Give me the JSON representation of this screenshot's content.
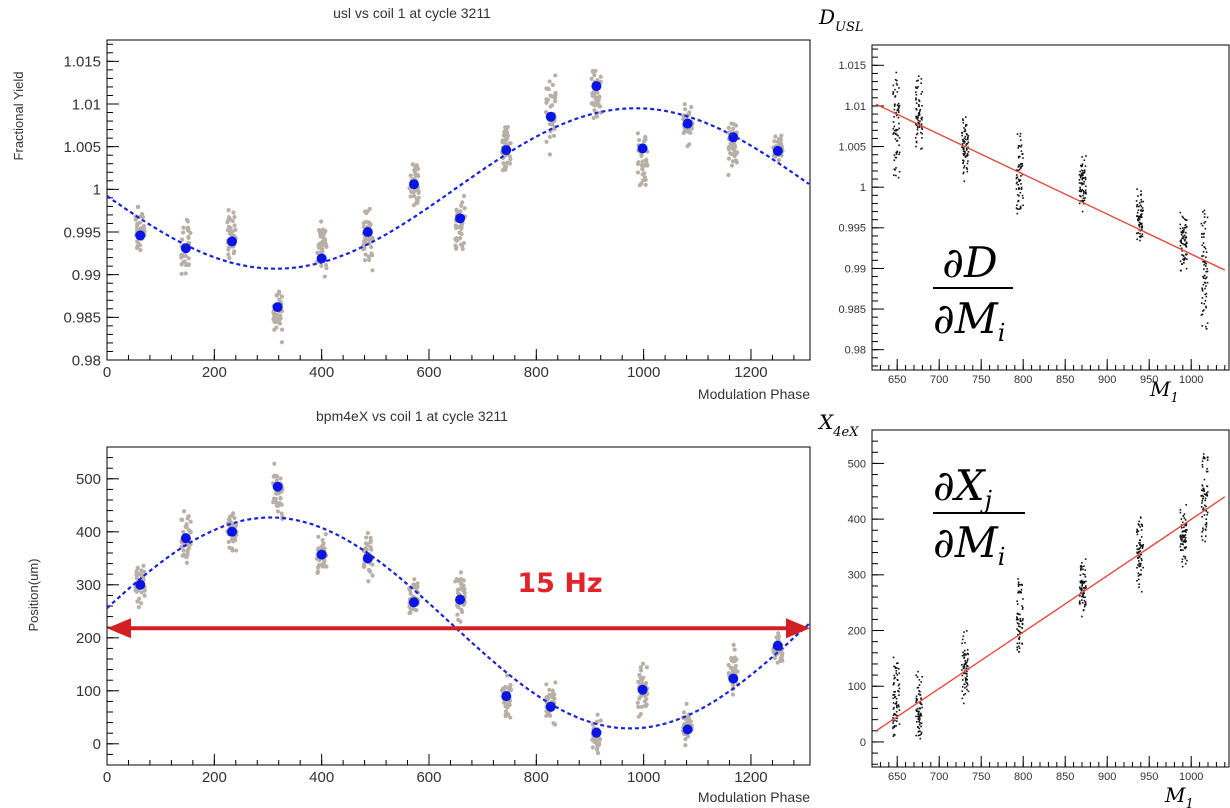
{
  "chart_data": [
    {
      "id": "usl",
      "type": "scatter",
      "title": "usl vs coil 1 at cycle 3211",
      "xlabel": "Modulation Phase",
      "ylabel": "Fractional Yield",
      "xlim": [
        0,
        1310
      ],
      "ylim": [
        0.98,
        1.0175
      ],
      "xticks": [
        0,
        200,
        400,
        600,
        800,
        1000,
        1200
      ],
      "xtick_labels": [
        "0",
        "200",
        "400",
        "600",
        "800",
        "1000",
        "1200"
      ],
      "yticks": [
        0.98,
        0.985,
        0.99,
        0.995,
        1.0,
        1.005,
        1.01,
        1.015
      ],
      "ytick_labels": [
        "0.98",
        "0.985",
        "0.99",
        "0.995",
        "1",
        "1.005",
        "1.01",
        "1.015"
      ],
      "grid": false,
      "series": [
        {
          "kind": "raw-spread",
          "color": "#b8b0a6",
          "x": [
            62,
            147,
            233,
            318,
            400,
            486,
            572,
            658,
            744,
            827,
            912,
            998,
            1082,
            1167,
            1250
          ],
          "low": [
            0.9915,
            0.9885,
            0.9905,
            0.9818,
            0.9885,
            0.989,
            0.9965,
            0.991,
            1.001,
            1.0025,
            1.007,
            0.998,
            1.004,
            1.0005,
            1.0025
          ],
          "high": [
            0.9985,
            0.9975,
            0.9985,
            0.9895,
            0.9975,
            0.9997,
            1.005,
            1.0005,
            1.009,
            1.0145,
            1.015,
            1.0095,
            1.0105,
            1.0095,
            1.0075
          ]
        },
        {
          "kind": "mean",
          "color": "#0a14e6",
          "x": [
            62,
            147,
            233,
            318,
            400,
            486,
            572,
            658,
            744,
            827,
            912,
            998,
            1082,
            1167,
            1250
          ],
          "y": [
            0.9946,
            0.9931,
            0.9939,
            0.9862,
            0.9919,
            0.995,
            1.0006,
            0.9966,
            1.0046,
            1.0085,
            1.0121,
            1.0048,
            1.0077,
            1.0061,
            1.0045
          ]
        },
        {
          "kind": "fit",
          "color": "#1a24d6",
          "curve": "sine",
          "offset": 1.0001,
          "amplitude": 0.0094,
          "period": 1340,
          "peak_at": 985
        }
      ]
    },
    {
      "id": "bpm4eX",
      "type": "scatter",
      "title": "bpm4eX vs coil 1 at cycle 3211",
      "xlabel": "Modulation Phase",
      "ylabel": "Position(um)",
      "xlim": [
        0,
        1310
      ],
      "ylim": [
        -40,
        560
      ],
      "xticks": [
        0,
        200,
        400,
        600,
        800,
        1000,
        1200
      ],
      "xtick_labels": [
        "0",
        "200",
        "400",
        "600",
        "800",
        "1000",
        "1200"
      ],
      "yticks": [
        0,
        100,
        200,
        300,
        400,
        500
      ],
      "ytick_labels": [
        "0",
        "100",
        "200",
        "300",
        "400",
        "500"
      ],
      "grid": false,
      "series": [
        {
          "kind": "raw-spread",
          "color": "#b8b0a6",
          "x": [
            62,
            147,
            233,
            318,
            400,
            486,
            572,
            658,
            744,
            827,
            912,
            998,
            1082,
            1167,
            1250
          ],
          "low": [
            245,
            330,
            335,
            415,
            295,
            290,
            210,
            215,
            25,
            20,
            -30,
            30,
            -25,
            70,
            145
          ],
          "high": [
            355,
            450,
            470,
            535,
            415,
            425,
            340,
            340,
            145,
            135,
            60,
            170,
            90,
            205,
            215
          ]
        },
        {
          "kind": "mean",
          "color": "#0a14e6",
          "x": [
            62,
            147,
            233,
            318,
            400,
            486,
            572,
            658,
            744,
            827,
            912,
            998,
            1082,
            1167,
            1250
          ],
          "y": [
            300,
            388,
            400,
            485,
            357,
            350,
            267,
            272,
            90,
            70,
            21,
            102,
            27,
            123,
            185
          ]
        },
        {
          "kind": "fit",
          "color": "#1a24d6",
          "curve": "sine",
          "offset": 228,
          "amplitude": 199,
          "period": 1340,
          "peak_at": 305
        }
      ],
      "annotations": [
        {
          "kind": "double-arrow",
          "text": "15 Hz",
          "y": 218,
          "x_from": 0,
          "x_to": 1310,
          "color": "#d21f26"
        }
      ]
    },
    {
      "id": "d-vs-m1",
      "type": "scatter",
      "title": "",
      "xlabel": "M",
      "xlabel_sub": "1",
      "ylabel": "D",
      "ylabel_sub": "USL",
      "formula": {
        "numerator": "∂D",
        "denominator": "∂M",
        "denominator_sub": "i"
      },
      "xlim": [
        620,
        1045
      ],
      "ylim": [
        0.9775,
        1.0175
      ],
      "xticks": [
        650,
        700,
        750,
        800,
        850,
        900,
        950,
        1000
      ],
      "xtick_labels": [
        "650",
        "700",
        "750",
        "800",
        "850",
        "900",
        "950",
        "1000"
      ],
      "yticks": [
        0.98,
        0.985,
        0.99,
        0.995,
        1.0,
        1.005,
        1.01,
        1.015
      ],
      "ytick_labels": [
        "0.98",
        "0.985",
        "0.99",
        "0.995",
        "1",
        "1.005",
        "1.01",
        "1.015"
      ],
      "grid": false,
      "series": [
        {
          "kind": "columns",
          "color": "#111111",
          "x": [
            648,
            675,
            730,
            795,
            870,
            938,
            990,
            1015
          ],
          "low": [
            1.0,
            1.0035,
            1.0005,
            0.995,
            0.9965,
            0.993,
            0.9895,
            0.981
          ],
          "high": [
            1.015,
            1.014,
            1.0095,
            1.007,
            1.0045,
            1.0,
            0.9975,
            0.9985
          ]
        },
        {
          "kind": "fit-line",
          "color": "#e04a3c",
          "x": [
            625,
            1040
          ],
          "y": [
            1.0102,
            0.9898
          ]
        }
      ]
    },
    {
      "id": "x4ex-vs-m1",
      "type": "scatter",
      "title": "",
      "xlabel": "M",
      "xlabel_sub": "1",
      "ylabel": "X",
      "ylabel_sub": "4eX",
      "formula": {
        "numerator": "∂X",
        "numerator_sub": "j",
        "denominator": "∂M",
        "denominator_sub": "i"
      },
      "xlim": [
        620,
        1045
      ],
      "ylim": [
        -45,
        560
      ],
      "xticks": [
        650,
        700,
        750,
        800,
        850,
        900,
        950,
        1000
      ],
      "xtick_labels": [
        "650",
        "700",
        "750",
        "800",
        "850",
        "900",
        "950",
        "1000"
      ],
      "yticks": [
        0,
        100,
        200,
        300,
        400,
        500
      ],
      "ytick_labels": [
        "0",
        "100",
        "200",
        "300",
        "400",
        "500"
      ],
      "grid": false,
      "series": [
        {
          "kind": "columns",
          "color": "#111111",
          "x": [
            648,
            675,
            730,
            795,
            870,
            938,
            990,
            1015
          ],
          "low": [
            -25,
            -20,
            55,
            145,
            220,
            265,
            300,
            330
          ],
          "high": [
            175,
            135,
            205,
            305,
            335,
            425,
            445,
            535
          ]
        },
        {
          "kind": "fit-line",
          "color": "#e04a3c",
          "x": [
            625,
            1040
          ],
          "y": [
            20,
            440
          ]
        }
      ]
    }
  ]
}
